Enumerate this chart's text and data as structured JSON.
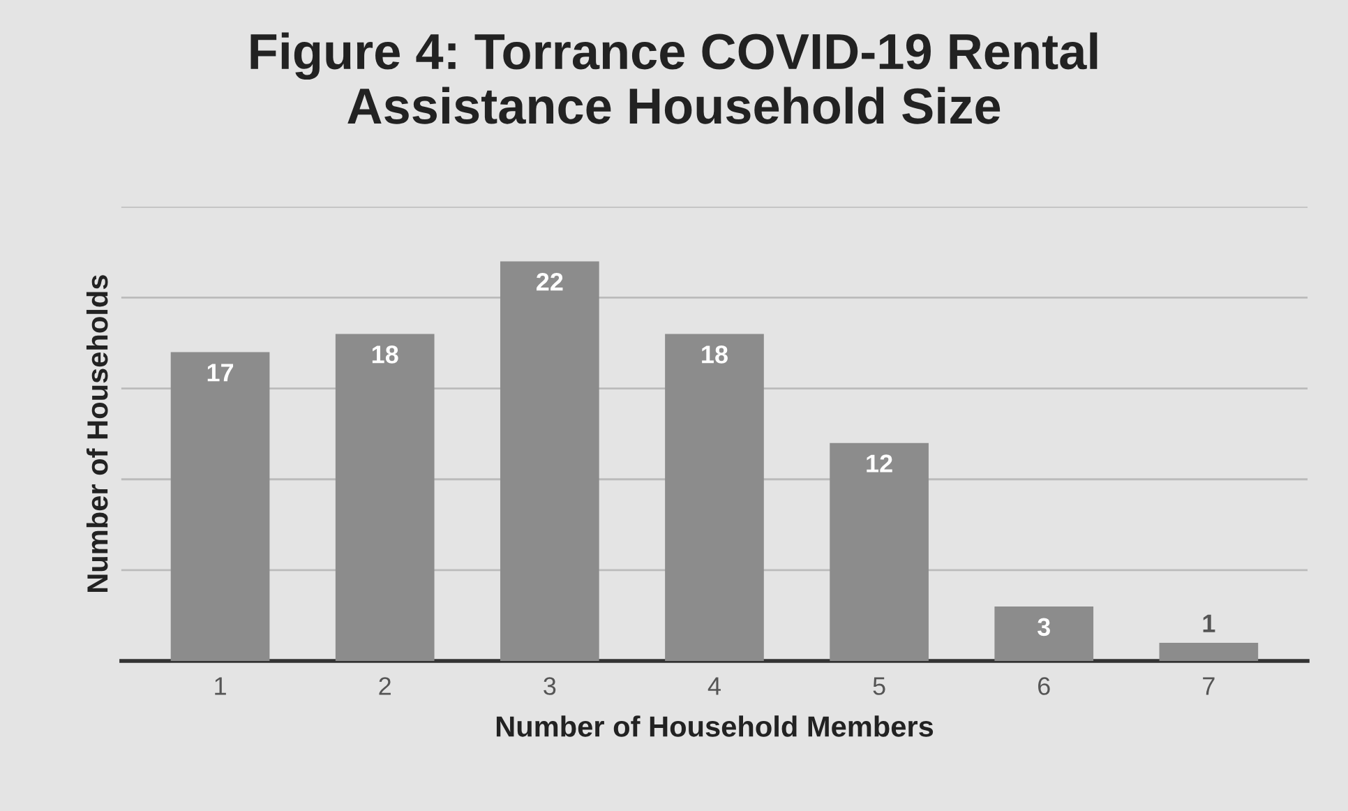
{
  "chart_data": {
    "type": "bar",
    "title": "Figure 4: Torrance COVID-19 Rental\nAssistance Household Size",
    "xlabel": "Number of Household Members",
    "ylabel": "Number of Households",
    "categories": [
      "1",
      "2",
      "3",
      "4",
      "5",
      "6",
      "7"
    ],
    "values": [
      17,
      18,
      22,
      18,
      12,
      3,
      1
    ],
    "color": "#8c8c8c",
    "ylim": [
      0,
      25
    ],
    "yticks": [
      {
        "value": 0,
        "label": null
      },
      {
        "value": 5,
        "label": null
      },
      {
        "value": 10,
        "label": null
      },
      {
        "value": 15,
        "label": null
      },
      {
        "value": 20,
        "label": null
      },
      {
        "value": 25,
        "label": null
      }
    ],
    "tick_labels": "x",
    "grid": "y",
    "data_labels": true,
    "legend": false
  }
}
